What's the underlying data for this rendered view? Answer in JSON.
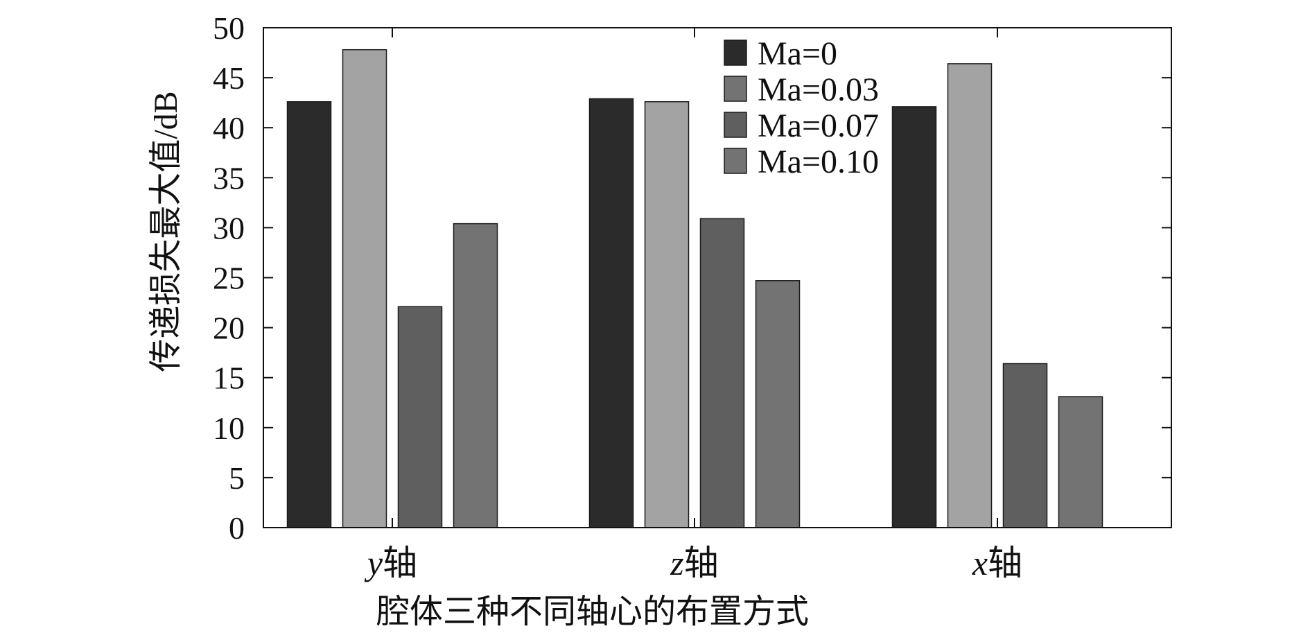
{
  "chart_data": {
    "type": "bar",
    "title": "",
    "xlabel": "腔体三种不同轴心的布置方式",
    "ylabel": "传递损失最大值/dB",
    "categories": [
      {
        "axis": "y",
        "suffix": "轴"
      },
      {
        "axis": "z",
        "suffix": "轴"
      },
      {
        "axis": "x",
        "suffix": "轴"
      }
    ],
    "series": [
      {
        "name": "Ma=0",
        "values": [
          42.6,
          42.9,
          42.1
        ]
      },
      {
        "name": "Ma=0.03",
        "values": [
          47.8,
          42.6,
          46.4
        ]
      },
      {
        "name": "Ma=0.07",
        "values": [
          22.1,
          30.9,
          16.4
        ]
      },
      {
        "name": "Ma=0.10",
        "values": [
          30.4,
          24.7,
          13.1
        ]
      }
    ],
    "ylim": [
      0,
      50
    ],
    "yticks": [
      0,
      5,
      10,
      15,
      20,
      25,
      30,
      35,
      40,
      45,
      50
    ],
    "grid": false,
    "legend_position": "top-right",
    "colors": {
      "bar_fills": [
        "#2b2b2b",
        "#a3a3a3",
        "#5f5f5f",
        "#737373"
      ],
      "legend_swatches": [
        "#2b2b2b",
        "#737373",
        "#5f5f5f",
        "#737373"
      ],
      "axis": "#111111"
    }
  }
}
